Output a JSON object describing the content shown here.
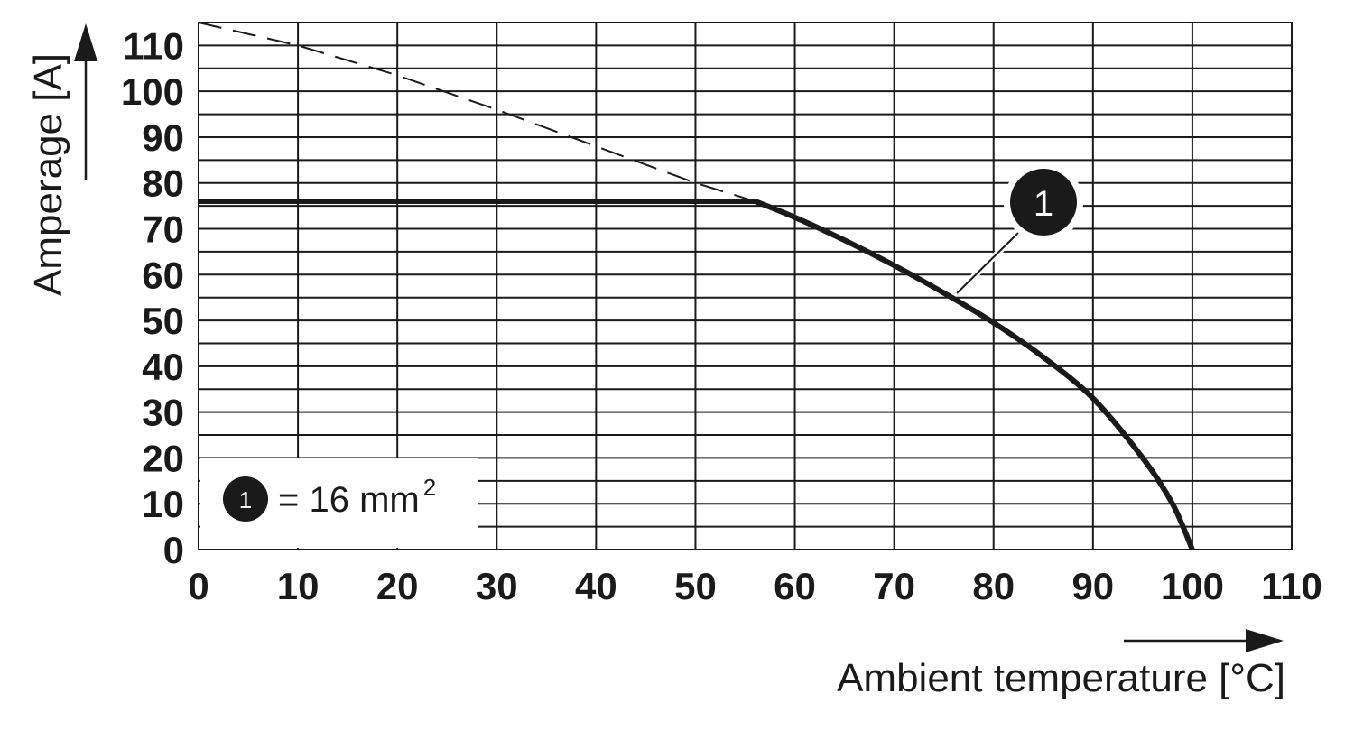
{
  "chart_data": {
    "type": "line",
    "xlabel": "Ambient temperature [°C]",
    "ylabel": "Amperage [A]",
    "xlim": [
      0,
      110
    ],
    "ylim": [
      0,
      115
    ],
    "x_ticks": [
      "0",
      "10",
      "20",
      "30",
      "40",
      "50",
      "60",
      "70",
      "80",
      "90",
      "100",
      "110"
    ],
    "y_ticks": [
      "0",
      "10",
      "20",
      "30",
      "40",
      "50",
      "60",
      "70",
      "80",
      "90",
      "100",
      "110"
    ],
    "grid": true,
    "series": [
      {
        "name": "1",
        "style": "solid",
        "x": [
          0,
          56,
          60,
          65,
          70,
          75,
          80,
          85,
          90,
          95,
          98,
          100
        ],
        "y": [
          76,
          76,
          72.5,
          67.5,
          62,
          56,
          49.5,
          42,
          33,
          20,
          10,
          0
        ]
      },
      {
        "style": "dashed",
        "x": [
          0,
          10,
          20,
          30,
          40,
          50,
          56
        ],
        "y": [
          115,
          110,
          103.5,
          96,
          88,
          80,
          76
        ]
      }
    ],
    "annotations": [
      {
        "marker": "1",
        "x": 76,
        "y": 55
      }
    ],
    "legend": {
      "marker": "1",
      "text": "= 16 mm",
      "superscript": "2",
      "position": "bottom-left"
    }
  },
  "colors": {
    "line": "#1a1a1a",
    "grid": "#1a1a1a",
    "background": "#ffffff"
  }
}
